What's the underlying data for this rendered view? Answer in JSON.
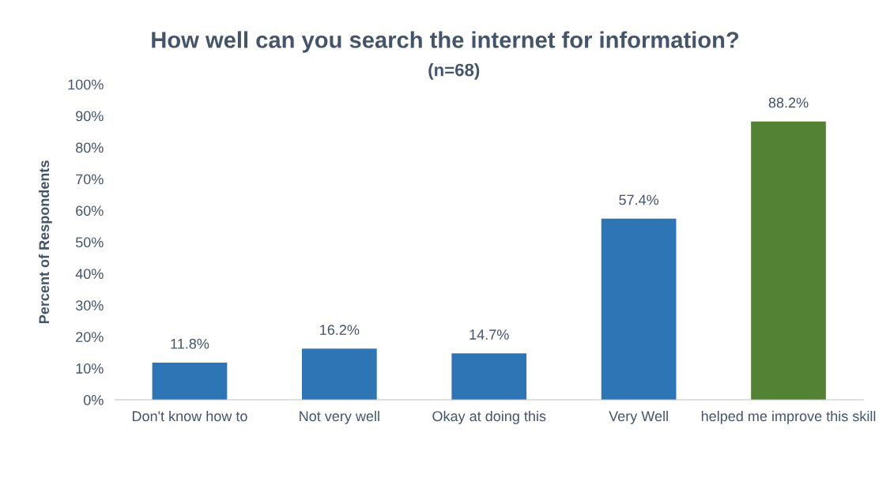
{
  "chart_data": {
    "type": "bar",
    "title": "How well can you search the internet for information?",
    "subtitle": "(n=68)",
    "ylabel": "Percent of Respondents",
    "categories": [
      "Don't know how to",
      "Not very well",
      "Okay at doing this",
      "Very Well",
      "helped me improve this skill"
    ],
    "values": [
      11.8,
      16.2,
      14.7,
      57.4,
      88.2
    ],
    "colors": [
      "#2e75b6",
      "#2e75b6",
      "#2e75b6",
      "#2e75b6",
      "#548235"
    ],
    "value_labels": [
      "11.8%",
      "16.2%",
      "14.7%",
      "57.4%",
      "88.2%"
    ],
    "ylim": [
      0,
      100
    ],
    "yticks": [
      {
        "value": 0,
        "label": "0%"
      },
      {
        "value": 10,
        "label": "10%"
      },
      {
        "value": 20,
        "label": "20%"
      },
      {
        "value": 30,
        "label": "30%"
      },
      {
        "value": 40,
        "label": "40%"
      },
      {
        "value": 50,
        "label": "50%"
      },
      {
        "value": 60,
        "label": "60%"
      },
      {
        "value": 70,
        "label": "70%"
      },
      {
        "value": 80,
        "label": "80%"
      },
      {
        "value": 90,
        "label": "90%"
      },
      {
        "value": 100,
        "label": "100%"
      }
    ],
    "grid": false
  }
}
